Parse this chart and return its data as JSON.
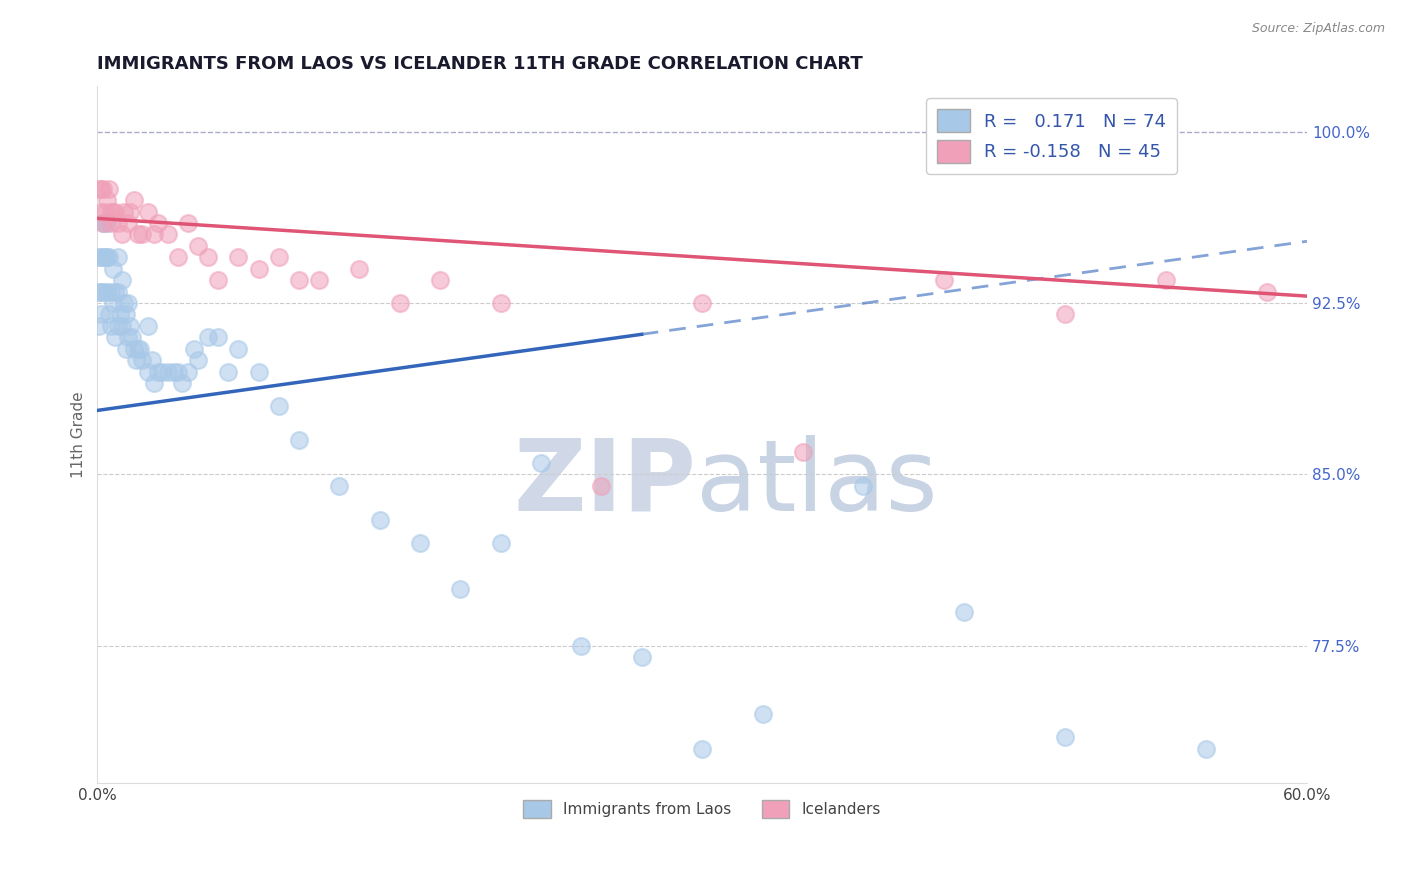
{
  "title": "IMMIGRANTS FROM LAOS VS ICELANDER 11TH GRADE CORRELATION CHART",
  "source": "Source: ZipAtlas.com",
  "ylabel": "11th Grade",
  "xlim": [
    0.0,
    0.6
  ],
  "ylim": [
    0.715,
    1.02
  ],
  "xticks": [
    0.0,
    0.1,
    0.2,
    0.3,
    0.4,
    0.5,
    0.6
  ],
  "xticklabels": [
    "0.0%",
    "",
    "",
    "",
    "",
    "",
    "60.0%"
  ],
  "yticks": [
    0.775,
    0.85,
    0.925,
    1.0
  ],
  "yticklabels": [
    "77.5%",
    "85.0%",
    "92.5%",
    "100.0%"
  ],
  "blue_r": 0.171,
  "blue_n": 74,
  "pink_r": -0.158,
  "pink_n": 45,
  "blue_color": "#a8c8e8",
  "pink_color": "#f0a0b8",
  "blue_line_color": "#3366bb",
  "pink_line_color": "#e05575",
  "blue_label": "Immigrants from Laos",
  "pink_label": "Icelanders",
  "blue_trend": [
    0.0,
    0.6,
    0.878,
    0.952
  ],
  "pink_trend": [
    0.0,
    0.6,
    0.962,
    0.928
  ],
  "blue_scatter_x": [
    0.001,
    0.001,
    0.001,
    0.002,
    0.002,
    0.002,
    0.003,
    0.003,
    0.003,
    0.004,
    0.004,
    0.005,
    0.005,
    0.005,
    0.006,
    0.006,
    0.007,
    0.007,
    0.008,
    0.008,
    0.009,
    0.009,
    0.01,
    0.01,
    0.01,
    0.011,
    0.012,
    0.012,
    0.013,
    0.014,
    0.014,
    0.015,
    0.015,
    0.016,
    0.017,
    0.018,
    0.019,
    0.02,
    0.021,
    0.022,
    0.025,
    0.025,
    0.027,
    0.028,
    0.03,
    0.032,
    0.035,
    0.038,
    0.04,
    0.042,
    0.045,
    0.048,
    0.05,
    0.055,
    0.06,
    0.065,
    0.07,
    0.08,
    0.09,
    0.1,
    0.12,
    0.14,
    0.16,
    0.18,
    0.2,
    0.22,
    0.24,
    0.27,
    0.3,
    0.33,
    0.38,
    0.43,
    0.48,
    0.55
  ],
  "blue_scatter_y": [
    0.945,
    0.93,
    0.915,
    0.945,
    0.93,
    0.92,
    0.96,
    0.945,
    0.93,
    0.96,
    0.945,
    0.96,
    0.945,
    0.93,
    0.945,
    0.92,
    0.93,
    0.915,
    0.94,
    0.925,
    0.93,
    0.91,
    0.945,
    0.93,
    0.915,
    0.92,
    0.935,
    0.915,
    0.925,
    0.92,
    0.905,
    0.925,
    0.91,
    0.915,
    0.91,
    0.905,
    0.9,
    0.905,
    0.905,
    0.9,
    0.915,
    0.895,
    0.9,
    0.89,
    0.895,
    0.895,
    0.895,
    0.895,
    0.895,
    0.89,
    0.895,
    0.905,
    0.9,
    0.91,
    0.91,
    0.895,
    0.905,
    0.895,
    0.88,
    0.865,
    0.845,
    0.83,
    0.82,
    0.8,
    0.82,
    0.855,
    0.775,
    0.77,
    0.73,
    0.745,
    0.845,
    0.79,
    0.735,
    0.73
  ],
  "pink_scatter_x": [
    0.001,
    0.002,
    0.002,
    0.003,
    0.003,
    0.004,
    0.005,
    0.006,
    0.007,
    0.007,
    0.008,
    0.009,
    0.01,
    0.012,
    0.013,
    0.015,
    0.016,
    0.018,
    0.02,
    0.022,
    0.025,
    0.028,
    0.03,
    0.035,
    0.04,
    0.045,
    0.05,
    0.055,
    0.06,
    0.07,
    0.08,
    0.09,
    0.1,
    0.11,
    0.13,
    0.15,
    0.17,
    0.2,
    0.25,
    0.3,
    0.35,
    0.42,
    0.48,
    0.53,
    0.58
  ],
  "pink_scatter_y": [
    0.975,
    0.975,
    0.965,
    0.975,
    0.96,
    0.965,
    0.97,
    0.975,
    0.965,
    0.96,
    0.965,
    0.965,
    0.96,
    0.955,
    0.965,
    0.96,
    0.965,
    0.97,
    0.955,
    0.955,
    0.965,
    0.955,
    0.96,
    0.955,
    0.945,
    0.96,
    0.95,
    0.945,
    0.935,
    0.945,
    0.94,
    0.945,
    0.935,
    0.935,
    0.94,
    0.925,
    0.935,
    0.925,
    0.845,
    0.925,
    0.86,
    0.935,
    0.92,
    0.935,
    0.93
  ]
}
